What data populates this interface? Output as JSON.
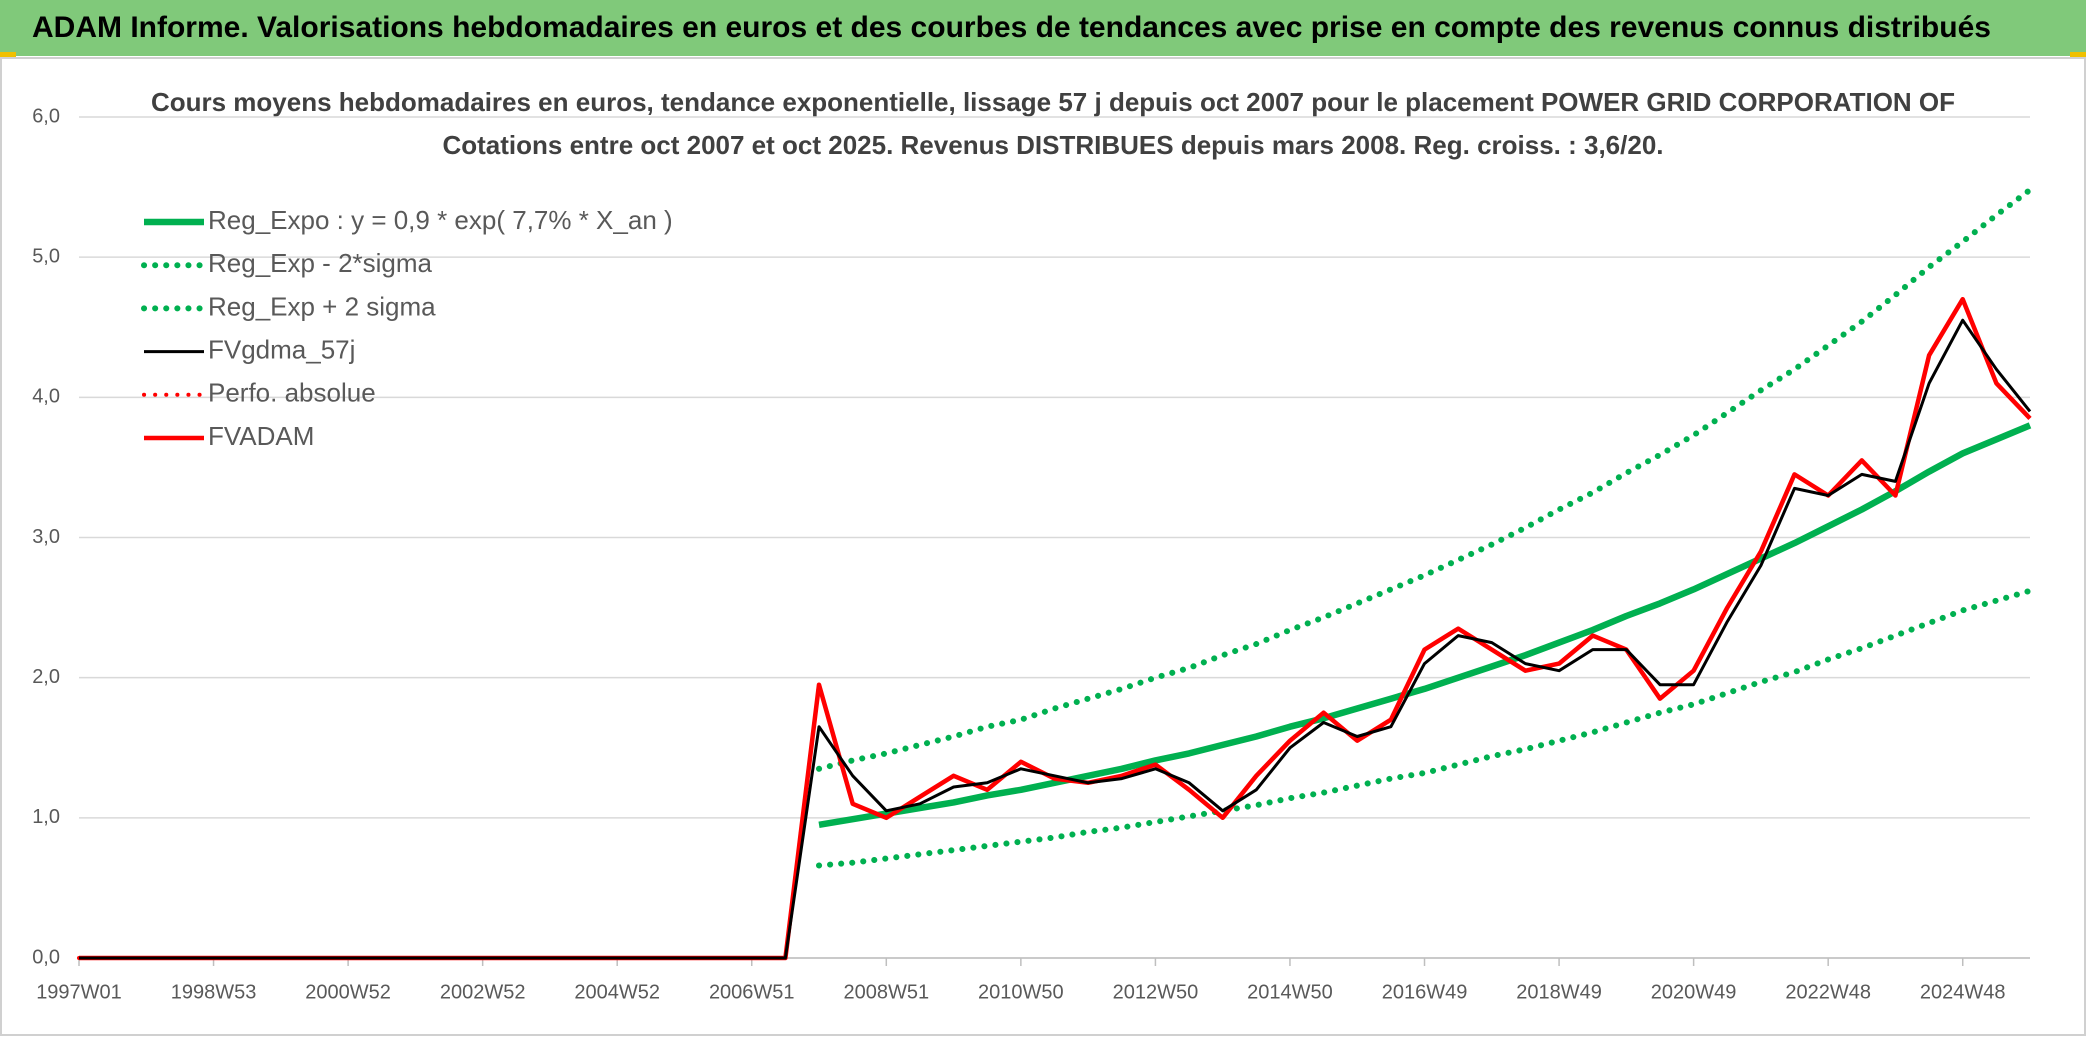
{
  "header": {
    "title": "ADAM Informe. Valorisations hebdomadaires en euros et des courbes de tendances avec prise en compte des revenus connus distribués"
  },
  "chart_data": {
    "type": "line",
    "title": "Cours moyens hebdomadaires en euros, tendance exponentielle, lissage 57 j depuis oct 2007 pour le placement POWER GRID CORPORATION OF",
    "subtitle": "Cotations entre oct 2007 et oct 2025. Revenus DISTRIBUES depuis mars 2008. Reg. croiss. : 3,6/20.",
    "categories": [
      "1997W01",
      null,
      null,
      null,
      "1998W53",
      null,
      null,
      null,
      "2000W52",
      null,
      null,
      null,
      "2002W52",
      null,
      null,
      null,
      "2004W52",
      null,
      null,
      null,
      "2006W51",
      null,
      null,
      null,
      "2008W51",
      null,
      null,
      null,
      "2010W50",
      null,
      null,
      null,
      "2012W50",
      null,
      null,
      null,
      "2014W50",
      null,
      null,
      null,
      "2016W49",
      null,
      null,
      null,
      "2018W49",
      null,
      null,
      null,
      "2020W49",
      null,
      null,
      null,
      "2022W48",
      null,
      null,
      null,
      "2024W48",
      null,
      null
    ],
    "ylim": [
      0,
      6
    ],
    "yticks": [
      {
        "value": 0,
        "label": "0,0"
      },
      {
        "value": 1,
        "label": "1,0"
      },
      {
        "value": 2,
        "label": "2,0"
      },
      {
        "value": 3,
        "label": "3,0"
      },
      {
        "value": 4,
        "label": "4,0"
      },
      {
        "value": 5,
        "label": "5,0"
      },
      {
        "value": 6,
        "label": "6,0"
      }
    ],
    "grid": true,
    "legend": "top-left",
    "series": [
      {
        "name": "Reg_Expo : y = 0,9 * exp( 7,7% *  X_an )",
        "color": "#00b050",
        "line_style": "solid",
        "values": [
          null,
          null,
          null,
          null,
          null,
          null,
          null,
          null,
          null,
          null,
          null,
          null,
          null,
          null,
          null,
          null,
          null,
          null,
          null,
          null,
          null,
          null,
          0.95,
          0.99,
          1.03,
          1.07,
          1.11,
          1.16,
          1.2,
          1.25,
          1.3,
          1.35,
          1.41,
          1.46,
          1.52,
          1.58,
          1.65,
          1.71,
          1.78,
          1.85,
          1.92,
          2.0,
          2.08,
          2.16,
          2.25,
          2.34,
          2.44,
          2.53,
          2.63,
          2.74,
          2.85,
          2.96,
          3.08,
          3.2,
          3.33,
          3.47,
          3.6,
          3.7,
          3.8
        ]
      },
      {
        "name": "Reg_Exp - 2*sigma",
        "color": "#00b050",
        "line_style": "dotted",
        "values": [
          null,
          null,
          null,
          null,
          null,
          null,
          null,
          null,
          null,
          null,
          null,
          null,
          null,
          null,
          null,
          null,
          null,
          null,
          null,
          null,
          null,
          null,
          0.66,
          0.68,
          0.71,
          0.74,
          0.77,
          0.8,
          0.83,
          0.86,
          0.9,
          0.93,
          0.97,
          1.01,
          1.05,
          1.09,
          1.14,
          1.18,
          1.23,
          1.28,
          1.32,
          1.38,
          1.44,
          1.49,
          1.55,
          1.61,
          1.68,
          1.75,
          1.81,
          1.89,
          1.97,
          2.04,
          2.13,
          2.21,
          2.3,
          2.39,
          2.48,
          2.55,
          2.62
        ]
      },
      {
        "name": "Reg_Exp + 2 sigma",
        "color": "#00b050",
        "line_style": "dotted",
        "values": [
          null,
          null,
          null,
          null,
          null,
          null,
          null,
          null,
          null,
          null,
          null,
          null,
          null,
          null,
          null,
          null,
          null,
          null,
          null,
          null,
          null,
          null,
          1.35,
          1.41,
          1.46,
          1.52,
          1.58,
          1.65,
          1.7,
          1.78,
          1.85,
          1.92,
          2.0,
          2.07,
          2.16,
          2.24,
          2.34,
          2.43,
          2.53,
          2.63,
          2.73,
          2.84,
          2.95,
          3.07,
          3.2,
          3.32,
          3.46,
          3.59,
          3.73,
          3.89,
          4.05,
          4.2,
          4.37,
          4.54,
          4.73,
          4.93,
          5.11,
          5.3,
          5.48
        ]
      },
      {
        "name": "FVgdma_57j",
        "color": "#000000",
        "line_style": "solid",
        "values": [
          0,
          0,
          0,
          0,
          0,
          0,
          0,
          0,
          0,
          0,
          0,
          0,
          0,
          0,
          0,
          0,
          0,
          0,
          0,
          0,
          0,
          0,
          1.65,
          1.3,
          1.05,
          1.1,
          1.22,
          1.25,
          1.35,
          1.3,
          1.25,
          1.28,
          1.35,
          1.25,
          1.05,
          1.2,
          1.5,
          1.68,
          1.58,
          1.65,
          2.1,
          2.3,
          2.25,
          2.1,
          2.05,
          2.2,
          2.2,
          1.95,
          1.95,
          2.4,
          2.8,
          3.35,
          3.3,
          3.45,
          3.4,
          4.1,
          4.55,
          4.2,
          3.9
        ]
      },
      {
        "name": "Perfo. absolue",
        "color": "#ff0000",
        "line_style": "dotted",
        "values": [
          0,
          0,
          0,
          0,
          0,
          0,
          0,
          0,
          0,
          0,
          0,
          0,
          0,
          0,
          0,
          0,
          0,
          0,
          0,
          0,
          0,
          0,
          1.95,
          1.1,
          1.0,
          1.15,
          1.3,
          1.2,
          1.4,
          1.28,
          1.25,
          1.3,
          1.38,
          1.2,
          1.0,
          1.3,
          1.55,
          1.75,
          1.55,
          1.7,
          2.2,
          2.35,
          2.2,
          2.05,
          2.1,
          2.3,
          2.2,
          1.85,
          2.05,
          2.5,
          2.9,
          3.45,
          3.3,
          3.55,
          3.3,
          4.3,
          4.7,
          4.1,
          3.85
        ]
      },
      {
        "name": "FVADAM",
        "color": "#ff0000",
        "line_style": "solid",
        "values": [
          0,
          0,
          0,
          0,
          0,
          0,
          0,
          0,
          0,
          0,
          0,
          0,
          0,
          0,
          0,
          0,
          0,
          0,
          0,
          0,
          0,
          0,
          1.95,
          1.1,
          1.0,
          1.15,
          1.3,
          1.2,
          1.4,
          1.28,
          1.25,
          1.3,
          1.38,
          1.2,
          1.0,
          1.3,
          1.55,
          1.75,
          1.55,
          1.7,
          2.2,
          2.35,
          2.2,
          2.05,
          2.1,
          2.3,
          2.2,
          1.85,
          2.05,
          2.5,
          2.9,
          3.45,
          3.3,
          3.55,
          3.3,
          4.3,
          4.7,
          4.1,
          3.85
        ]
      }
    ]
  }
}
